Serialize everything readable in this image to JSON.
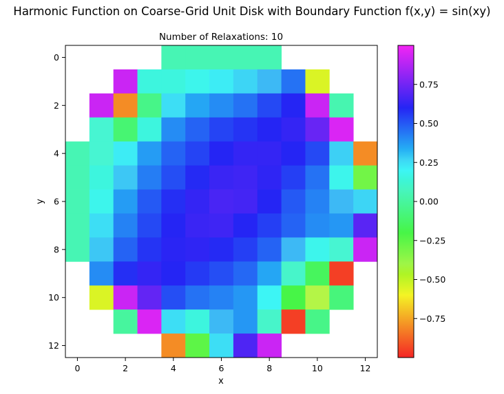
{
  "chart_data": {
    "type": "heatmap",
    "title": "Harmonic Function on Coarse-Grid Unit Disk with Boundary Function f(x,y) = sin(xy)",
    "subtitle": "Number of Relaxations: 10",
    "xlabel": "x",
    "ylabel": "y",
    "x_ticks": [
      "0",
      "2",
      "4",
      "6",
      "8",
      "10",
      "12"
    ],
    "y_ticks": [
      "0",
      "2",
      "4",
      "6",
      "8",
      "10",
      "12"
    ],
    "grid_size": [
      13,
      13
    ],
    "y_axis_inverted": true,
    "colormap": "gist_rainbow",
    "vmin": -1.0,
    "vmax": 1.0,
    "colorbar_ticks": [
      "0.75",
      "0.50",
      "0.25",
      "0.00",
      "−0.25",
      "−0.50",
      "−0.75"
    ],
    "colorbar_tick_values": [
      0.75,
      0.5,
      0.25,
      0.0,
      -0.25,
      -0.5,
      -0.75
    ],
    "z": [
      [
        null,
        null,
        null,
        null,
        0.05,
        0.05,
        0.05,
        0.05,
        0.05,
        null,
        null,
        null,
        null
      ],
      [
        null,
        null,
        0.92,
        0.15,
        0.15,
        0.18,
        0.22,
        0.27,
        0.33,
        0.45,
        -0.55,
        null,
        null
      ],
      [
        null,
        0.92,
        -0.8,
        -0.05,
        0.25,
        0.35,
        0.4,
        0.45,
        0.53,
        0.6,
        0.92,
        0.04,
        null
      ],
      [
        null,
        0.12,
        -0.1,
        0.15,
        0.4,
        0.48,
        0.54,
        0.57,
        0.6,
        0.63,
        0.73,
        0.95,
        null
      ],
      [
        0.05,
        0.12,
        0.22,
        0.37,
        0.48,
        0.54,
        0.6,
        0.63,
        0.63,
        0.6,
        0.53,
        0.28,
        -0.8
      ],
      [
        0.05,
        0.15,
        0.3,
        0.43,
        0.52,
        0.59,
        0.64,
        0.65,
        0.62,
        0.55,
        0.45,
        0.18,
        -0.3
      ],
      [
        0.05,
        0.18,
        0.37,
        0.5,
        0.58,
        0.63,
        0.67,
        0.66,
        0.6,
        0.5,
        0.42,
        0.33,
        0.27
      ],
      [
        0.05,
        0.25,
        0.42,
        0.53,
        0.6,
        0.64,
        0.65,
        0.6,
        0.55,
        0.48,
        0.4,
        0.38,
        0.7
      ],
      [
        0.05,
        0.3,
        0.48,
        0.57,
        0.61,
        0.62,
        0.59,
        0.55,
        0.48,
        0.33,
        0.18,
        0.12,
        0.92
      ],
      [
        null,
        0.4,
        0.58,
        0.63,
        0.6,
        0.56,
        0.52,
        0.47,
        0.35,
        0.1,
        -0.15,
        -0.95,
        null
      ],
      [
        null,
        -0.55,
        0.92,
        0.72,
        0.52,
        0.45,
        0.42,
        0.38,
        0.2,
        -0.2,
        -0.45,
        -0.08,
        null
      ],
      [
        null,
        null,
        0.0,
        0.95,
        0.25,
        0.15,
        0.33,
        0.38,
        0.1,
        -0.95,
        -0.05,
        null,
        null
      ],
      [
        null,
        null,
        null,
        null,
        -0.8,
        -0.25,
        0.25,
        0.68,
        0.92,
        null,
        null,
        null,
        null
      ]
    ]
  }
}
